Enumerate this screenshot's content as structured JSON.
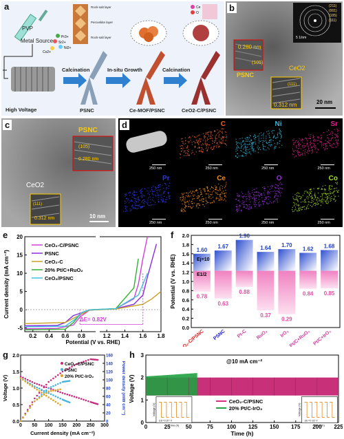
{
  "panel_a": {
    "label": "a",
    "pvp": "PVP",
    "metal_source": "Metal Source",
    "ions": [
      "Pr3+",
      "Sr2+",
      "Ni2+",
      "Co2+"
    ],
    "layer_labels": [
      "Rock-salt layer",
      "Perovskite layer",
      "Rock-salt layer"
    ],
    "high_voltage": "High Voltage",
    "steps": [
      "Calcination",
      "In-situ Growth",
      "Calcination"
    ],
    "products": [
      "PSNC",
      "Ce-MOF/PSNC",
      "CeO2-C/PSNC"
    ],
    "legend": [
      "Ce",
      "O"
    ]
  },
  "panel_b": {
    "label": "b",
    "d1": "0.280 nm",
    "hkl1": "(105)",
    "name1": "PSNC",
    "name2": "CeO2",
    "d2": "0.312 nm",
    "hkl2": "(111)",
    "saed_rings": [
      "(211)",
      "(001)",
      "(105)",
      "(111)"
    ],
    "saed_scale": "5 1/nm",
    "scale": "20 nm"
  },
  "panel_c": {
    "label": "c",
    "name1": "PSNC",
    "hkl1": "(105)",
    "d1": "0.280 nm",
    "name2": "CeO2",
    "hkl2": "(111)",
    "d2": "0.312 nm",
    "scale": "10 nm"
  },
  "panel_d": {
    "label": "d",
    "maps": [
      {
        "el": "",
        "color": "#bbbbbb",
        "scale": "250 nm"
      },
      {
        "el": "C",
        "color": "#e8602c",
        "scale": "250 nm"
      },
      {
        "el": "Ni",
        "color": "#38b6d8",
        "scale": "250 nm"
      },
      {
        "el": "Sr",
        "color": "#e0208a",
        "scale": "250 nm"
      },
      {
        "el": "Pr",
        "color": "#2a3af0",
        "scale": "250 nm"
      },
      {
        "el": "Ce",
        "color": "#f08a1a",
        "scale": "250 nm"
      },
      {
        "el": "O",
        "color": "#9a30e0",
        "scale": "250 nm"
      },
      {
        "el": "Co",
        "color": "#a8e020",
        "scale": "250 nm"
      }
    ]
  },
  "panel_e": {
    "label": "e",
    "ylabel": "Current density (mA cm⁻²)",
    "xlabel": "Potential (V vs. RHE)",
    "delta": "ΔE= 0.82V",
    "xticks_left": [
      "0.2",
      "0.4",
      "0.6",
      "0.8"
    ],
    "xticks_right": [
      "1.2",
      "1.4",
      "1.6",
      "1.8"
    ],
    "yticks": [
      "20",
      "15",
      "10",
      "5",
      "0",
      "-5"
    ],
    "legend": [
      {
        "name": "CeO₂-C/PSNC",
        "color": "#d040d8"
      },
      {
        "name": "PSNC",
        "color": "#8a2be2"
      },
      {
        "name": "CeO₂-C",
        "color": "#c8a020"
      },
      {
        "name": "20% Pt/C+RuO₂",
        "color": "#30b030"
      },
      {
        "name": "CeO₂/PSNC",
        "color": "#40c0e0"
      }
    ]
  },
  "panel_f": {
    "label": "f",
    "ylabel": "Potential (V vs. RHE)",
    "yticks": [
      "2.0",
      "1.8",
      "1.6",
      "1.4",
      "1.2",
      "1.0",
      "0.8",
      "0.6",
      "0.4",
      "0.2",
      "0.0"
    ],
    "ej": "Ej=10",
    "e12": "E1/2",
    "categories": [
      "CeO₂-C/PSNC",
      "PSNC",
      "Pt-C",
      "RuO₂",
      "IrO₂",
      "Pt/C+RuO₂",
      "Pt/C+IrO₂"
    ],
    "cat_colors": [
      "#e02020",
      "#2020d0",
      "#d040a0",
      "#d040a0",
      "#d040a0",
      "#d040a0",
      "#d040a0"
    ],
    "top_vals": [
      "1.60",
      "1.67",
      "1.90",
      "1.64",
      "1.70",
      "1.62",
      "1.68"
    ],
    "bot_vals": [
      "0.78",
      "0.63",
      "0.88",
      "0.37",
      "0.29",
      "0.84",
      "0.85"
    ]
  },
  "panel_g": {
    "label": "g",
    "ylabel": "Voltage (V)",
    "y2label": "Power density (mW cm⁻²)",
    "xlabel": "Current density (mA cm⁻²)",
    "yticks": [
      "2.0",
      "1.5",
      "1.0",
      "0.5",
      "0.0"
    ],
    "y2ticks": [
      "160",
      "140",
      "120",
      "100",
      "80",
      "60",
      "40",
      "20",
      "0"
    ],
    "xticks": [
      "0",
      "50",
      "100",
      "150",
      "200",
      "250",
      "300"
    ],
    "legend": [
      "CeO₂-C/PSNC",
      "PSNC",
      "20% Pt/C-IrO₂"
    ]
  },
  "panel_h": {
    "label": "h",
    "ylabel": "Voltage (V)",
    "xlabel": "Time (h)",
    "title": "@10 mA cm⁻²",
    "yticks": [
      "3",
      "2",
      "1",
      "0"
    ],
    "xticks": [
      "0",
      "25",
      "50",
      "75",
      "100",
      "125",
      "150",
      "175",
      "200",
      "225"
    ],
    "legend": [
      {
        "name": "CeO₂-C/PSNC",
        "color": "#d0307a"
      },
      {
        "name": "20% Pt/C-IrO₂",
        "color": "#20a040"
      }
    ],
    "inset1_ylabel": "Voltage (V)",
    "inset1_xlabel": "Time (h)",
    "inset1_note": "ΔE=0.87 V",
    "inset2_ylabel": "Voltage (V)",
    "inset2_xlabel": "Time (h)",
    "inset2_note": "ΔE=0.82 V"
  },
  "chart_data": [
    {
      "type": "line",
      "xlabel": "Potential (V vs. RHE)",
      "ylabel": "Current density (mA cm⁻²)",
      "xlim": [
        0.1,
        1.8
      ],
      "ylim": [
        -6,
        20
      ],
      "series": [
        {
          "name": "CeO₂-C/PSNC",
          "x": [
            0.1,
            0.5,
            0.7,
            0.78,
            0.9,
            1.3,
            1.5,
            1.55,
            1.6,
            1.65
          ],
          "y": [
            -5.2,
            -5.1,
            -4.2,
            -2,
            -0.1,
            0.3,
            3,
            7,
            14,
            20
          ]
        },
        {
          "name": "PSNC",
          "x": [
            0.1,
            0.5,
            0.6,
            0.7,
            0.9,
            1.3,
            1.5,
            1.6,
            1.65,
            1.75
          ],
          "y": [
            -4.4,
            -4.3,
            -3.5,
            -1.6,
            -0.1,
            0.3,
            1.5,
            4,
            9,
            18
          ]
        },
        {
          "name": "CeO₂-C",
          "x": [
            0.1,
            0.6,
            0.8,
            0.9,
            1.3,
            1.6,
            1.7,
            1.8
          ],
          "y": [
            -3.8,
            -3.5,
            -1.2,
            -0.1,
            0.2,
            1.5,
            3,
            5
          ]
        },
        {
          "name": "20% Pt/C+RuO₂",
          "x": [
            0.1,
            0.6,
            0.7,
            0.8,
            0.9,
            1.3,
            1.5,
            1.55
          ],
          "y": [
            -5.5,
            -5.3,
            -3.5,
            -0.8,
            0,
            0.3,
            6,
            14
          ]
        },
        {
          "name": "CeO₂/PSNC",
          "x": [
            0.1,
            0.6,
            0.72,
            0.8,
            0.9,
            1.3,
            1.55,
            1.65
          ],
          "y": [
            -4.7,
            -4.5,
            -2.6,
            -0.8,
            0,
            0.3,
            4,
            10
          ]
        }
      ]
    },
    {
      "type": "bar",
      "ylabel": "Potential (V vs. RHE)",
      "categories": [
        "CeO₂-C/PSNC",
        "PSNC",
        "Pt-C",
        "RuO₂",
        "IrO₂",
        "Pt/C+RuO₂",
        "Pt/C+IrO₂"
      ],
      "series": [
        {
          "name": "Ej=10",
          "values": [
            1.6,
            1.67,
            1.9,
            1.64,
            1.7,
            1.62,
            1.68
          ]
        },
        {
          "name": "E1/2",
          "values": [
            0.78,
            0.63,
            0.88,
            0.37,
            0.29,
            0.84,
            0.85
          ]
        }
      ],
      "ylim": [
        0,
        2.0
      ]
    },
    {
      "type": "scatter",
      "xlabel": "Current density (mA cm⁻²)",
      "ylabel": "Voltage (V)",
      "y2label": "Power density (mW cm⁻²)",
      "xlim": [
        0,
        300
      ],
      "ylim": [
        0,
        2.0
      ],
      "y2lim": [
        0,
        160
      ],
      "series": [
        {
          "name": "CeO₂-C/PSNC",
          "x": [
            0,
            50,
            100,
            150,
            200,
            250,
            280
          ],
          "voltage": [
            1.35,
            1.15,
            1.0,
            0.85,
            0.72,
            0.58,
            0.5
          ],
          "power": [
            0,
            55,
            95,
            120,
            138,
            150,
            148
          ]
        },
        {
          "name": "PSNC",
          "x": [
            0,
            50,
            100,
            150,
            180
          ],
          "voltage": [
            1.3,
            1.05,
            0.85,
            0.65,
            0.55
          ],
          "power": [
            0,
            48,
            80,
            95,
            98
          ]
        },
        {
          "name": "20% Pt/C-IrO₂",
          "x": [
            0,
            50,
            100,
            150
          ],
          "voltage": [
            1.3,
            1.0,
            0.72,
            0.45
          ],
          "power": [
            0,
            48,
            72,
            78
          ]
        }
      ]
    },
    {
      "type": "line",
      "xlabel": "Time (h)",
      "ylabel": "Voltage (V)",
      "xlim": [
        0,
        225
      ],
      "ylim": [
        0,
        3
      ],
      "series": [
        {
          "name": "CeO₂-C/PSNC",
          "x": [
            0,
            225
          ],
          "y": [
            1.6,
            1.6
          ]
        },
        {
          "name": "20% Pt/C-IrO₂",
          "x": [
            0,
            60
          ],
          "y": [
            1.7,
            1.9
          ]
        }
      ]
    }
  ]
}
